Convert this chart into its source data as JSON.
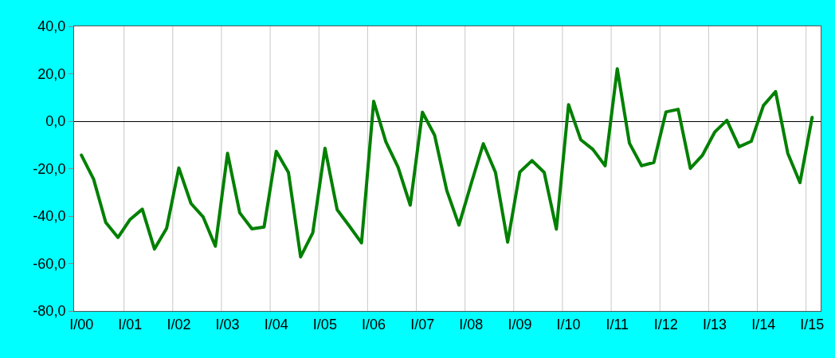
{
  "chart_data": {
    "type": "line",
    "categories": [
      "I/00",
      null,
      null,
      null,
      "I/01",
      null,
      null,
      null,
      "I/02",
      null,
      null,
      null,
      "I/03",
      null,
      null,
      null,
      "I/04",
      null,
      null,
      null,
      "I/05",
      null,
      null,
      null,
      "I/06",
      null,
      null,
      null,
      "I/07",
      null,
      null,
      null,
      "I/08",
      null,
      null,
      null,
      "I/09",
      null,
      null,
      null,
      "I/10",
      null,
      null,
      null,
      "I/11",
      null,
      null,
      null,
      "I/12",
      null,
      null,
      null,
      "I/13",
      null,
      null,
      null,
      "I/14",
      null,
      null,
      null,
      "I/15"
    ],
    "series": [
      {
        "color": "#008000",
        "values": [
          -14.3,
          -24.4,
          -42.7,
          -49.0,
          -41.4,
          -37.1,
          -53.9,
          -45.1,
          -19.7,
          -34.7,
          -40.4,
          -52.7,
          -13.5,
          -38.6,
          -45.4,
          -44.6,
          -12.7,
          -21.6,
          -57.2,
          -47.0,
          -11.4,
          -37.3,
          -44.2,
          -51.3,
          8.4,
          -8.7,
          -19.4,
          -35.4,
          3.8,
          -5.9,
          -29.2,
          -43.8,
          -26.4,
          -9.5,
          -21.6,
          -51.0,
          -21.4,
          -16.6,
          -21.6,
          -45.5,
          7.0,
          -7.8,
          -11.9,
          -18.8,
          22.1,
          -9.3,
          -18.8,
          -17.4,
          3.9,
          5.0,
          -19.9,
          -14.3,
          -4.6,
          0.4,
          -10.8,
          -8.5,
          6.6,
          12.5,
          -13.5,
          -25.9,
          1.6
        ]
      }
    ],
    "ylim": [
      -80,
      40
    ],
    "yticks": [
      {
        "value": -80,
        "label": "-80,0"
      },
      {
        "value": -60,
        "label": "-60,0"
      },
      {
        "value": -40,
        "label": "-40,0"
      },
      {
        "value": -20,
        "label": "-20,0"
      },
      {
        "value": 0,
        "label": "0,0"
      },
      {
        "value": 20,
        "label": "20,0"
      },
      {
        "value": 40,
        "label": "40,0"
      }
    ],
    "grid": "x",
    "marker": "none",
    "line_style": "solid"
  }
}
